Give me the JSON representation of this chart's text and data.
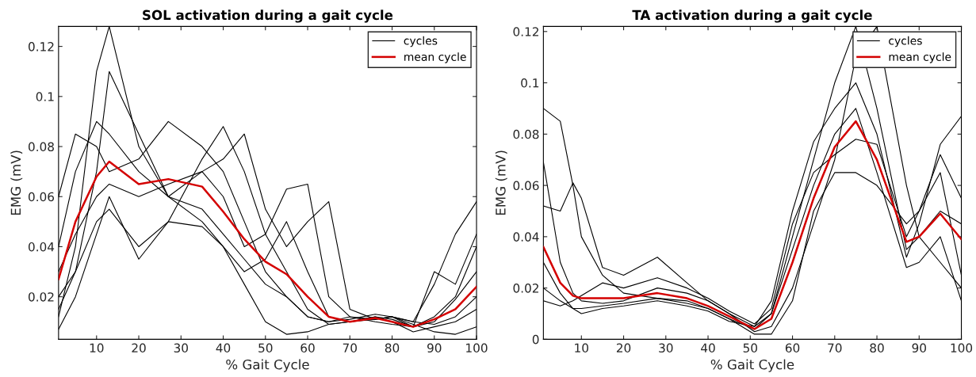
{
  "chart_data": [
    {
      "type": "line",
      "title": "SOL activation during a gait cycle",
      "xlabel": "% Gait Cycle",
      "ylabel": "EMG (mV)",
      "x": [
        1,
        5,
        10,
        13,
        20,
        27,
        35,
        40,
        45,
        50,
        55,
        60,
        65,
        70,
        76,
        80,
        85,
        90,
        95,
        100
      ],
      "xlim": [
        1,
        100
      ],
      "ylim": [
        0.003,
        0.128
      ],
      "xticks": [
        10,
        20,
        30,
        40,
        50,
        60,
        70,
        80,
        90,
        100
      ],
      "yticks": [
        0.02,
        0.04,
        0.06,
        0.08,
        0.1,
        0.12
      ],
      "grid": false,
      "legend": "top right",
      "marker": "none",
      "line_style": "solid",
      "series": [
        {
          "name": "cycles",
          "color": "#000000",
          "values": [
            0.012,
            0.04,
            0.11,
            0.128,
            0.08,
            0.06,
            0.055,
            0.045,
            0.035,
            0.025,
            0.02,
            0.012,
            0.01,
            0.012,
            0.01,
            0.009,
            0.008,
            0.01,
            0.019,
            0.03
          ]
        },
        {
          "color": "#000000",
          "values": [
            0.015,
            0.03,
            0.07,
            0.11,
            0.085,
            0.06,
            0.05,
            0.04,
            0.03,
            0.035,
            0.05,
            0.03,
            0.012,
            0.01,
            0.012,
            0.011,
            0.008,
            0.012,
            0.02,
            0.04
          ]
        },
        {
          "color": "#000000",
          "values": [
            0.06,
            0.085,
            0.08,
            0.07,
            0.075,
            0.09,
            0.08,
            0.07,
            0.05,
            0.03,
            0.02,
            0.012,
            0.01,
            0.011,
            0.013,
            0.012,
            0.01,
            0.025,
            0.045,
            0.058
          ]
        },
        {
          "color": "#000000",
          "values": [
            0.02,
            0.03,
            0.05,
            0.055,
            0.04,
            0.05,
            0.075,
            0.088,
            0.07,
            0.045,
            0.03,
            0.015,
            0.009,
            0.01,
            0.012,
            0.01,
            0.006,
            0.008,
            0.01,
            0.015
          ]
        },
        {
          "color": "#000000",
          "values": [
            0.04,
            0.07,
            0.09,
            0.085,
            0.07,
            0.06,
            0.07,
            0.06,
            0.04,
            0.045,
            0.063,
            0.065,
            0.02,
            0.012,
            0.011,
            0.012,
            0.01,
            0.009,
            0.012,
            0.02
          ]
        },
        {
          "color": "#000000",
          "values": [
            0.007,
            0.02,
            0.045,
            0.06,
            0.035,
            0.05,
            0.048,
            0.04,
            0.025,
            0.01,
            0.005,
            0.006,
            0.009,
            0.01,
            0.011,
            0.012,
            0.009,
            0.006,
            0.005,
            0.008
          ]
        },
        {
          "color": "#000000",
          "values": [
            0.03,
            0.045,
            0.06,
            0.065,
            0.06,
            0.065,
            0.07,
            0.075,
            0.085,
            0.055,
            0.04,
            0.05,
            0.058,
            0.015,
            0.011,
            0.012,
            0.008,
            0.03,
            0.025,
            0.045
          ]
        },
        {
          "name": "mean cycle",
          "color": "#d40000",
          "values": [
            0.027,
            0.05,
            0.068,
            0.074,
            0.065,
            0.067,
            0.064,
            0.054,
            0.043,
            0.034,
            0.029,
            0.02,
            0.012,
            0.01,
            0.0115,
            0.01,
            0.008,
            0.011,
            0.015,
            0.024
          ]
        }
      ]
    },
    {
      "type": "line",
      "title": "TA activation during a gait cycle",
      "xlabel": "% Gait Cycle",
      "ylabel": "EMG (mV)",
      "x": [
        1,
        5,
        8,
        10,
        15,
        20,
        28,
        35,
        40,
        45,
        51,
        55,
        60,
        65,
        70,
        75,
        80,
        87,
        90,
        95,
        100
      ],
      "xlim": [
        1,
        100
      ],
      "ylim": [
        0,
        0.122
      ],
      "xticks": [
        10,
        20,
        30,
        40,
        50,
        60,
        70,
        80,
        90,
        100
      ],
      "yticks": [
        0,
        0.02,
        0.04,
        0.06,
        0.08,
        0.1,
        0.12
      ],
      "grid": false,
      "legend": "top right",
      "marker": "none",
      "line_style": "solid",
      "series": [
        {
          "name": "cycles",
          "color": "#000000",
          "values": [
            0.09,
            0.085,
            0.06,
            0.04,
            0.025,
            0.018,
            0.016,
            0.014,
            0.012,
            0.008,
            0.004,
            0.01,
            0.04,
            0.07,
            0.1,
            0.122,
            0.09,
            0.035,
            0.04,
            0.05,
            0.045
          ]
        },
        {
          "color": "#000000",
          "values": [
            0.052,
            0.05,
            0.061,
            0.055,
            0.028,
            0.025,
            0.032,
            0.022,
            0.015,
            0.01,
            0.005,
            0.015,
            0.05,
            0.077,
            0.09,
            0.1,
            0.08,
            0.032,
            0.045,
            0.076,
            0.087
          ]
        },
        {
          "color": "#000000",
          "values": [
            0.069,
            0.03,
            0.018,
            0.015,
            0.014,
            0.015,
            0.02,
            0.018,
            0.015,
            0.01,
            0.003,
            0.005,
            0.02,
            0.045,
            0.07,
            0.11,
            0.122,
            0.06,
            0.04,
            0.03,
            0.02
          ]
        },
        {
          "color": "#000000",
          "values": [
            0.02,
            0.015,
            0.012,
            0.012,
            0.013,
            0.014,
            0.016,
            0.015,
            0.012,
            0.008,
            0.002,
            0.002,
            0.015,
            0.05,
            0.065,
            0.065,
            0.06,
            0.045,
            0.05,
            0.072,
            0.055
          ]
        },
        {
          "color": "#000000",
          "values": [
            0.03,
            0.018,
            0.012,
            0.01,
            0.012,
            0.013,
            0.015,
            0.013,
            0.011,
            0.007,
            0.005,
            0.01,
            0.035,
            0.06,
            0.08,
            0.09,
            0.065,
            0.028,
            0.03,
            0.04,
            0.015
          ]
        },
        {
          "color": "#000000",
          "values": [
            0.015,
            0.013,
            0.015,
            0.017,
            0.022,
            0.02,
            0.024,
            0.02,
            0.016,
            0.011,
            0.006,
            0.012,
            0.045,
            0.065,
            0.072,
            0.078,
            0.076,
            0.04,
            0.05,
            0.065,
            0.025
          ]
        },
        {
          "name": "mean cycle",
          "color": "#d40000",
          "values": [
            0.036,
            0.022,
            0.017,
            0.016,
            0.016,
            0.016,
            0.018,
            0.016,
            0.013,
            0.009,
            0.004,
            0.008,
            0.03,
            0.055,
            0.075,
            0.085,
            0.07,
            0.038,
            0.04,
            0.049,
            0.039
          ]
        }
      ]
    }
  ]
}
